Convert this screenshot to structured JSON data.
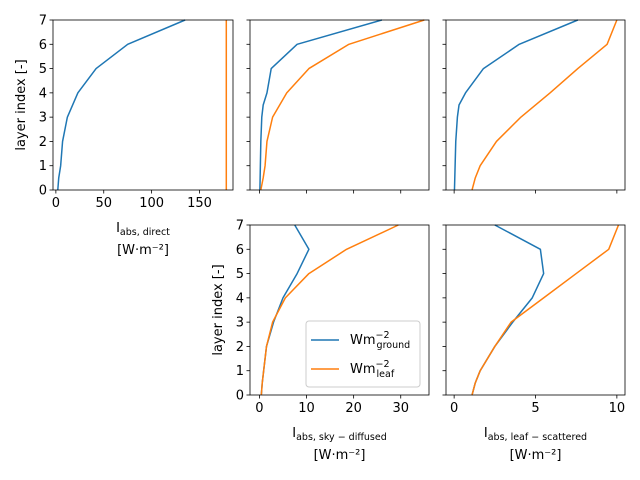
{
  "chart_data": [
    {
      "type": "line",
      "panel": "top-left",
      "xlabel_main": "I",
      "xlabel_sub": "abs, direct",
      "xlabel_unit": "[W·m⁻²]",
      "ylabel": "layer index [-]",
      "xlim": [
        -3,
        185
      ],
      "ylim": [
        0,
        7
      ],
      "xticks": [
        0,
        50,
        100,
        150
      ],
      "yticks": [
        0,
        1,
        2,
        3,
        4,
        5,
        6,
        7
      ],
      "show_x_ticklabels": true,
      "show_y_ticklabels": true,
      "series": [
        {
          "color": "#1f77b4",
          "x": [
            2,
            3,
            5,
            7,
            12,
            23,
            42,
            75,
            135
          ],
          "y": [
            0,
            0.5,
            1,
            2,
            3,
            4,
            5,
            6,
            7
          ]
        },
        {
          "color": "#ff7f0e",
          "x": [
            178,
            178,
            178,
            178,
            178,
            178,
            178,
            178,
            178
          ],
          "y": [
            0,
            0.5,
            1,
            2,
            3,
            4,
            5,
            6,
            7
          ]
        }
      ]
    },
    {
      "type": "line",
      "panel": "top-middle",
      "xlim": [
        -2,
        36
      ],
      "ylim": [
        0,
        7
      ],
      "xticks": [
        0,
        10,
        20,
        30
      ],
      "yticks": [
        0,
        1,
        2,
        3,
        4,
        5,
        6,
        7
      ],
      "show_x_ticklabels": false,
      "show_y_ticklabels": false,
      "series": [
        {
          "color": "#1f77b4",
          "x": [
            0.1,
            0.15,
            0.2,
            0.3,
            0.5,
            0.8,
            1.6,
            2.5,
            8,
            26
          ],
          "y": [
            0,
            0.5,
            1,
            2,
            3,
            3.5,
            4,
            5,
            6,
            7
          ]
        },
        {
          "color": "#ff7f0e",
          "x": [
            0.3,
            0.8,
            1.2,
            1.6,
            2.8,
            5.8,
            10.5,
            19,
            35
          ],
          "y": [
            0,
            0.5,
            1,
            2,
            3,
            4,
            5,
            6,
            7
          ]
        }
      ]
    },
    {
      "type": "line",
      "panel": "top-right",
      "xlim": [
        -0.5,
        10.5
      ],
      "ylim": [
        0,
        7
      ],
      "xticks": [
        0,
        5,
        10
      ],
      "yticks": [
        0,
        1,
        2,
        3,
        4,
        5,
        6,
        7
      ],
      "show_x_ticklabels": false,
      "show_y_ticklabels": false,
      "series": [
        {
          "color": "#1f77b4",
          "x": [
            0.02,
            0.04,
            0.06,
            0.1,
            0.2,
            0.3,
            0.7,
            1.8,
            4,
            7.6
          ],
          "y": [
            0,
            0.5,
            1,
            2,
            3,
            3.5,
            4,
            5,
            6,
            7
          ]
        },
        {
          "color": "#ff7f0e",
          "x": [
            1.1,
            1.3,
            1.6,
            2.6,
            4.1,
            5.9,
            7.6,
            9.4,
            10
          ],
          "y": [
            0,
            0.5,
            1,
            2,
            3,
            4,
            5,
            6,
            7
          ]
        }
      ]
    },
    {
      "type": "line",
      "panel": "bottom-middle",
      "xlabel_main": "I",
      "xlabel_sub": "abs, sky − diffused",
      "xlabel_unit": "[W·m⁻²]",
      "ylabel": "layer index [-]",
      "xlim": [
        -2,
        36
      ],
      "ylim": [
        0,
        7
      ],
      "xticks": [
        0,
        10,
        20,
        30
      ],
      "yticks": [
        0,
        1,
        2,
        3,
        4,
        5,
        6,
        7
      ],
      "show_x_ticklabels": true,
      "show_y_ticklabels": true,
      "legend": {
        "loc": "lower right",
        "entries": [
          "Wm⁻²ground",
          "Wm⁻²leaf"
        ]
      },
      "series": [
        {
          "color": "#1f77b4",
          "name": "Wm⁻²ground",
          "x": [
            0.4,
            0.6,
            0.9,
            1.5,
            3.0,
            5.0,
            8.0,
            10.5,
            7.5
          ],
          "y": [
            0,
            0.5,
            1,
            2,
            3,
            4,
            5,
            6,
            7
          ]
        },
        {
          "color": "#ff7f0e",
          "name": "Wm⁻²leaf",
          "x": [
            0.4,
            0.6,
            0.9,
            1.5,
            2.8,
            5.5,
            10.5,
            18.5,
            29.5
          ],
          "y": [
            0,
            0.5,
            1,
            2,
            3,
            4,
            5,
            6,
            7
          ]
        }
      ]
    },
    {
      "type": "line",
      "panel": "bottom-right",
      "xlabel_main": "I",
      "xlabel_sub": "abs, leaf − scattered",
      "xlabel_unit": "[W·m⁻²]",
      "xlim": [
        -0.5,
        10.5
      ],
      "ylim": [
        0,
        7
      ],
      "xticks": [
        0,
        5,
        10
      ],
      "yticks": [
        0,
        1,
        2,
        3,
        4,
        5,
        6,
        7
      ],
      "show_x_ticklabels": true,
      "show_y_ticklabels": false,
      "series": [
        {
          "color": "#1f77b4",
          "x": [
            1.1,
            1.3,
            1.6,
            2.5,
            3.6,
            4.8,
            5.5,
            5.3,
            2.5
          ],
          "y": [
            0,
            0.5,
            1,
            2,
            3,
            4,
            5,
            6,
            7
          ]
        },
        {
          "color": "#ff7f0e",
          "x": [
            1.1,
            1.3,
            1.6,
            2.5,
            3.5,
            5.5,
            7.5,
            9.5,
            10.1
          ],
          "y": [
            0,
            0.5,
            1,
            2,
            3,
            4,
            5,
            6,
            7
          ]
        }
      ]
    }
  ]
}
